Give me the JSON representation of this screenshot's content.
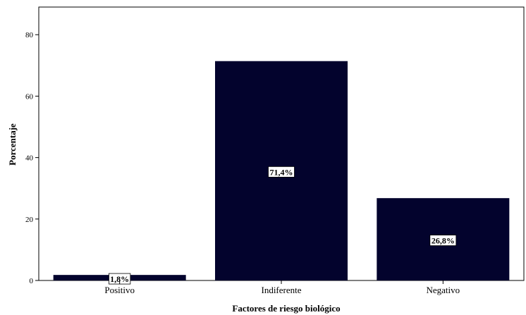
{
  "chart_data": {
    "type": "bar",
    "categories": [
      "Positivo",
      "Indiferente",
      "Negativo"
    ],
    "values": [
      1.8,
      71.4,
      26.8
    ],
    "data_labels": [
      "1,8%",
      "71,4%",
      "26,8%"
    ],
    "title": "",
    "xlabel": "Factores de riesgo biológico",
    "ylabel": "Porcentaje",
    "ylim": [
      0,
      89
    ],
    "yticks": [
      0,
      20,
      40,
      60,
      80
    ],
    "bar_color": "#03032d",
    "grid": false,
    "legend": "none"
  }
}
